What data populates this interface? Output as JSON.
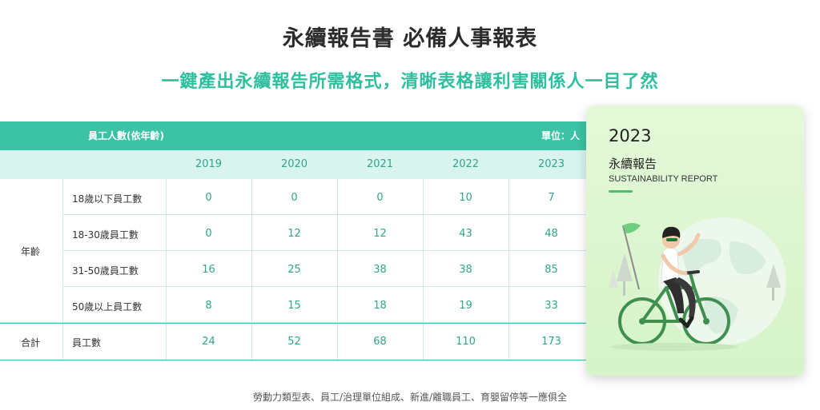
{
  "header": {
    "title": "永續報告書 必備人事報表",
    "subtitle": "一鍵產出永續報告所需格式，清晰表格讓利害關係人一目了然"
  },
  "table": {
    "title": "員工人數(依年齡)",
    "unit": "單位：人",
    "years": [
      "2019",
      "2020",
      "2021",
      "2022",
      "2023"
    ],
    "group_label": "年齡",
    "rows": [
      {
        "label": "18歲以下員工數",
        "values": [
          "0",
          "0",
          "0",
          "10",
          "7"
        ]
      },
      {
        "label": "18-30歲員工數",
        "values": [
          "0",
          "12",
          "12",
          "43",
          "48"
        ]
      },
      {
        "label": "31-50歲員工數",
        "values": [
          "16",
          "25",
          "38",
          "38",
          "85"
        ]
      },
      {
        "label": "50歲以上員工數",
        "values": [
          "8",
          "15",
          "18",
          "19",
          "33"
        ]
      }
    ],
    "total": {
      "group": "合計",
      "label": "員工數",
      "values": [
        "24",
        "52",
        "68",
        "110",
        "173"
      ]
    }
  },
  "card": {
    "year": "2023",
    "title_zh": "永續報告",
    "title_en": "SUSTAINABILITY REPORT",
    "illustration": "woman-cycling-globe-illustration",
    "accent_color": "#4bbf6b"
  },
  "footer": {
    "note": "勞動力類型表、員工/治理單位組成、新進/離職員工、育嬰留停等一應俱全"
  },
  "colors": {
    "teal": "#3cc3a5",
    "teal_light": "#d9f4ee",
    "teal_text": "#2fbf9e",
    "card_bg": "#ddf5cf"
  }
}
